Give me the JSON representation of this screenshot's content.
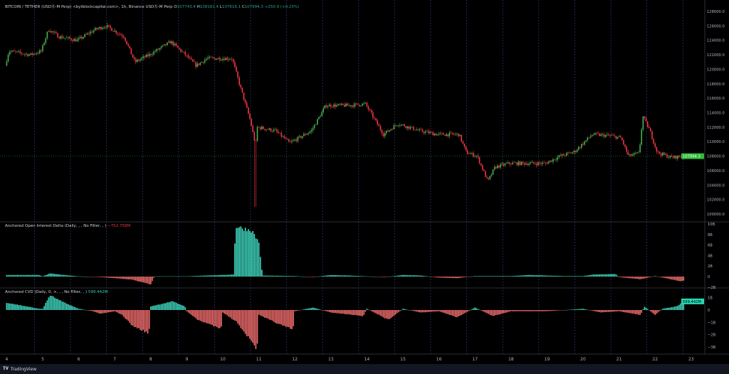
{
  "header": {
    "symbol": "BITCOIN / TETHER (USDⓈ-M Perp) <bytblockcapital.com>, 1h, Binance USDⓈ-M Perp",
    "open_label": "O",
    "open": "107743.4",
    "high_label": "H",
    "high": "108161.4",
    "low_label": "L",
    "low": "107616.1",
    "close_label": "C",
    "close": "107994.3",
    "change": "+250.9 (+0.23%)"
  },
  "oi_pane": {
    "title": "Anchored Open Interest Delta (Daily, , , No Filter, , )",
    "value": "−752.758M"
  },
  "cvd_pane": {
    "title": "Anchored CVD (Daily, 0, ∞, , , No Filter, , )",
    "value": "599.442M"
  },
  "footer": {
    "brand": "TradingView"
  },
  "colors": {
    "up": "#4caf50",
    "down": "#f23645",
    "hist_up": "#3fd8c0",
    "hist_down": "#f26d6d",
    "last_price_bg": "#2ebd3a",
    "cvd_label_bg": "#26d9b5"
  },
  "chart_data": [
    {
      "type": "candlestick",
      "interval": "1h",
      "x_ticks": [
        "4",
        "5",
        "6",
        "7",
        "8",
        "9",
        "10",
        "11",
        "12",
        "13",
        "14",
        "15",
        "16",
        "17",
        "18",
        "19",
        "20",
        "21",
        "22",
        "23"
      ],
      "y_ticks": [
        "128000.0",
        "126000.0",
        "124000.0",
        "122000.0",
        "120000.0",
        "118000.0",
        "116000.0",
        "114000.0",
        "112000.0",
        "110000.0",
        "108000.0",
        "106000.0",
        "104000.0",
        "102000.0",
        "100000.0"
      ],
      "ylim": [
        99500,
        129500
      ],
      "last_price": "107994.3",
      "price_path": [
        [
          4.0,
          120500
        ],
        [
          4.1,
          122500
        ],
        [
          4.7,
          122000
        ],
        [
          5.0,
          122500
        ],
        [
          5.2,
          125500
        ],
        [
          5.5,
          124500
        ],
        [
          6.0,
          124000
        ],
        [
          6.5,
          125500
        ],
        [
          6.8,
          126000
        ],
        [
          7.3,
          124500
        ],
        [
          7.6,
          121000
        ],
        [
          8.0,
          122000
        ],
        [
          8.6,
          123800
        ],
        [
          9.0,
          122000
        ],
        [
          9.3,
          120500
        ],
        [
          9.6,
          121500
        ],
        [
          10.3,
          121500
        ],
        [
          10.5,
          118000
        ],
        [
          10.8,
          113000
        ],
        [
          10.95,
          109500
        ],
        [
          11.0,
          112000
        ],
        [
          11.5,
          111500
        ],
        [
          11.9,
          109800
        ],
        [
          12.5,
          111500
        ],
        [
          12.9,
          115000
        ],
        [
          13.5,
          115000
        ],
        [
          14.0,
          115200
        ],
        [
          14.5,
          111000
        ],
        [
          14.9,
          112500
        ],
        [
          15.5,
          111500
        ],
        [
          16.0,
          111000
        ],
        [
          16.6,
          111000
        ],
        [
          16.8,
          108500
        ],
        [
          17.1,
          108000
        ],
        [
          17.4,
          104500
        ],
        [
          17.6,
          106500
        ],
        [
          18.0,
          107000
        ],
        [
          19.0,
          107000
        ],
        [
          19.4,
          108000
        ],
        [
          19.8,
          108600
        ],
        [
          20.3,
          111000
        ],
        [
          20.8,
          110800
        ],
        [
          21.1,
          110500
        ],
        [
          21.3,
          108000
        ],
        [
          21.6,
          108400
        ],
        [
          21.7,
          113500
        ],
        [
          21.9,
          111500
        ],
        [
          22.1,
          108500
        ],
        [
          22.5,
          107800
        ],
        [
          22.8,
          107994
        ]
      ],
      "flash_low": [
        10.9,
        101000
      ]
    },
    {
      "type": "bar",
      "name": "Anchored Open Interest Delta",
      "y_ticks": [
        "10B",
        "8B",
        "6B",
        "4B",
        "2B",
        "0",
        "−2B"
      ],
      "ylim": [
        -2.5,
        10.5
      ],
      "values_B": [
        [
          4.0,
          0.3
        ],
        [
          4.9,
          0.3
        ],
        [
          5.0,
          0.05
        ],
        [
          5.2,
          0.6
        ],
        [
          5.6,
          0.3
        ],
        [
          6.0,
          0.05
        ],
        [
          6.6,
          -0.1
        ],
        [
          7.0,
          -0.3
        ],
        [
          7.5,
          -0.6
        ],
        [
          8.0,
          -1.5
        ],
        [
          8.1,
          0.05
        ],
        [
          9.0,
          0.05
        ],
        [
          9.5,
          0.2
        ],
        [
          10.0,
          0.3
        ],
        [
          10.3,
          0.4
        ],
        [
          10.35,
          9.5
        ],
        [
          10.8,
          8.8
        ],
        [
          11.0,
          6.5
        ],
        [
          11.1,
          0.2
        ],
        [
          12.0,
          0.1
        ],
        [
          12.5,
          -0.1
        ],
        [
          13.0,
          0.3
        ],
        [
          13.5,
          0.2
        ],
        [
          14.0,
          0.05
        ],
        [
          14.5,
          -0.1
        ],
        [
          15.0,
          0.3
        ],
        [
          15.5,
          0.2
        ],
        [
          16.0,
          -0.2
        ],
        [
          16.5,
          -0.3
        ],
        [
          17.0,
          0.1
        ],
        [
          18.0,
          0.1
        ],
        [
          18.5,
          0.3
        ],
        [
          19.0,
          0.2
        ],
        [
          19.5,
          0.1
        ],
        [
          20.0,
          0.1
        ],
        [
          20.3,
          0.4
        ],
        [
          20.9,
          0.5
        ],
        [
          21.0,
          -0.1
        ],
        [
          21.6,
          -0.5
        ],
        [
          22.0,
          0.1
        ],
        [
          22.3,
          -0.3
        ],
        [
          22.7,
          -0.9
        ],
        [
          22.8,
          -0.75
        ]
      ]
    },
    {
      "type": "bar",
      "name": "Anchored CVD",
      "y_ticks": [
        "1B",
        "0",
        "−1B",
        "−2B",
        "−3B"
      ],
      "ylim": [
        -3.4,
        1.5
      ],
      "last_value": "599.442M",
      "values_B": [
        [
          4.0,
          0.6
        ],
        [
          4.9,
          0.1
        ],
        [
          5.0,
          0.1
        ],
        [
          5.2,
          1.2
        ],
        [
          5.6,
          0.6
        ],
        [
          6.0,
          0.1
        ],
        [
          6.4,
          -0.1
        ],
        [
          6.6,
          -0.3
        ],
        [
          7.0,
          -0.1
        ],
        [
          7.2,
          -0.4
        ],
        [
          7.5,
          -1.3
        ],
        [
          7.95,
          -1.9
        ],
        [
          8.0,
          0.3
        ],
        [
          8.6,
          0.7
        ],
        [
          8.95,
          0.3
        ],
        [
          9.0,
          -0.1
        ],
        [
          9.3,
          -0.8
        ],
        [
          9.95,
          -1.5
        ],
        [
          10.0,
          -0.2
        ],
        [
          10.4,
          -1.0
        ],
        [
          10.6,
          -1.8
        ],
        [
          10.95,
          -3.2
        ],
        [
          11.0,
          -0.4
        ],
        [
          11.6,
          -1.2
        ],
        [
          11.95,
          -1.6
        ],
        [
          12.0,
          -0.1
        ],
        [
          12.5,
          0.2
        ],
        [
          13.0,
          -0.2
        ],
        [
          13.9,
          -0.5
        ],
        [
          14.0,
          0.1
        ],
        [
          14.6,
          -0.8
        ],
        [
          15.0,
          0.1
        ],
        [
          15.5,
          -0.2
        ],
        [
          16.0,
          -0.1
        ],
        [
          16.5,
          -0.6
        ],
        [
          17.0,
          0.2
        ],
        [
          17.5,
          -0.5
        ],
        [
          18.0,
          -0.1
        ],
        [
          19.0,
          -0.1
        ],
        [
          20.0,
          0.1
        ],
        [
          20.5,
          -0.2
        ],
        [
          21.0,
          -0.1
        ],
        [
          21.6,
          -0.4
        ],
        [
          21.7,
          0.3
        ],
        [
          22.0,
          -0.4
        ],
        [
          22.2,
          0.1
        ],
        [
          22.6,
          0.3
        ],
        [
          22.8,
          0.7
        ]
      ]
    }
  ]
}
